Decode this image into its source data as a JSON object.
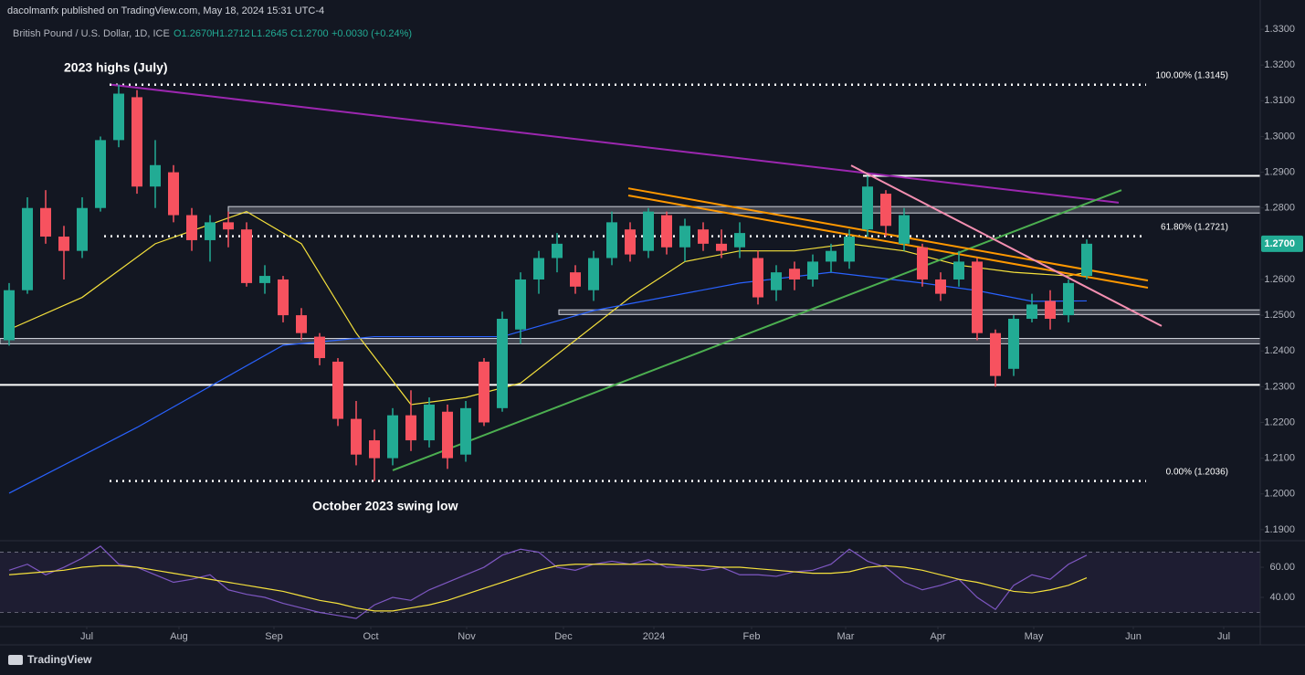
{
  "header": {
    "publisher": "dacolmanfx published on TradingView.com, May 18, 2024 15:31 UTC-4",
    "symbol": "British Pound / U.S. Dollar, 1D, ICE",
    "open": "O1.2670",
    "high": "H1.2712",
    "low": "L1.2645",
    "close": "C1.2700",
    "change": "+0.0030 (+0.24%)"
  },
  "footer": {
    "logo": "TradingView"
  },
  "chart_data": [
    {
      "type": "candlestick",
      "up_color": "#22ab94",
      "down_color": "#f7525f",
      "xlim": [
        -0.5,
        68.5
      ],
      "xticks": [
        {
          "value": 4.25,
          "label": "Jul"
        },
        {
          "value": 9.3,
          "label": "Aug"
        },
        {
          "value": 14.5,
          "label": "Sep"
        },
        {
          "value": 19.8,
          "label": "Oct"
        },
        {
          "value": 25.05,
          "label": "Nov"
        },
        {
          "value": 30.35,
          "label": "Dec"
        },
        {
          "value": 35.3,
          "label": "2024"
        },
        {
          "value": 40.65,
          "label": "Feb"
        },
        {
          "value": 45.8,
          "label": "Mar"
        },
        {
          "value": 50.85,
          "label": "Apr"
        },
        {
          "value": 56.1,
          "label": "May"
        },
        {
          "value": 61.55,
          "label": "Jun"
        },
        {
          "value": 66.5,
          "label": "Jul"
        }
      ],
      "ylim": [
        1.1869,
        1.3382
      ],
      "yticks": [
        {
          "value": 1.33,
          "label": "1.3300"
        },
        {
          "value": 1.32,
          "label": "1.3200"
        },
        {
          "value": 1.31,
          "label": "1.3100"
        },
        {
          "value": 1.3,
          "label": "1.3000"
        },
        {
          "value": 1.29,
          "label": "1.2900"
        },
        {
          "value": 1.28,
          "label": "1.2800"
        },
        {
          "value": 1.27,
          "label": "1.2700"
        },
        {
          "value": 1.26,
          "label": "1.2600"
        },
        {
          "value": 1.25,
          "label": "1.2500"
        },
        {
          "value": 1.24,
          "label": "1.2400"
        },
        {
          "value": 1.23,
          "label": "1.2300"
        },
        {
          "value": 1.22,
          "label": "1.2200"
        },
        {
          "value": 1.21,
          "label": "1.2100"
        },
        {
          "value": 1.2,
          "label": "1.2000"
        },
        {
          "value": 1.19,
          "label": "1.1900"
        }
      ],
      "ohlc": [
        [
          1.243,
          1.259,
          1.2415,
          1.257
        ],
        [
          1.257,
          1.283,
          1.256,
          1.28
        ],
        [
          1.28,
          1.285,
          1.27,
          1.272
        ],
        [
          1.272,
          1.275,
          1.26,
          1.268
        ],
        [
          1.268,
          1.283,
          1.266,
          1.28
        ],
        [
          1.28,
          1.3,
          1.279,
          1.299
        ],
        [
          1.299,
          1.3145,
          1.297,
          1.312
        ],
        [
          1.311,
          1.313,
          1.284,
          1.286
        ],
        [
          1.286,
          1.299,
          1.28,
          1.292
        ],
        [
          1.29,
          1.292,
          1.276,
          1.278
        ],
        [
          1.278,
          1.28,
          1.268,
          1.271
        ],
        [
          1.271,
          1.278,
          1.265,
          1.276
        ],
        [
          1.276,
          1.279,
          1.269,
          1.274
        ],
        [
          1.274,
          1.276,
          1.258,
          1.259
        ],
        [
          1.259,
          1.264,
          1.256,
          1.261
        ],
        [
          1.26,
          1.261,
          1.248,
          1.25
        ],
        [
          1.25,
          1.252,
          1.243,
          1.245
        ],
        [
          1.244,
          1.245,
          1.236,
          1.238
        ],
        [
          1.237,
          1.238,
          1.219,
          1.221
        ],
        [
          1.221,
          1.226,
          1.208,
          1.211
        ],
        [
          1.215,
          1.218,
          1.2036,
          1.21
        ],
        [
          1.21,
          1.224,
          1.208,
          1.222
        ],
        [
          1.222,
          1.229,
          1.212,
          1.215
        ],
        [
          1.215,
          1.227,
          1.213,
          1.225
        ],
        [
          1.223,
          1.225,
          1.207,
          1.21
        ],
        [
          1.211,
          1.226,
          1.209,
          1.224
        ],
        [
          1.237,
          1.238,
          1.219,
          1.22
        ],
        [
          1.224,
          1.251,
          1.223,
          1.249
        ],
        [
          1.246,
          1.262,
          1.242,
          1.26
        ],
        [
          1.26,
          1.268,
          1.256,
          1.266
        ],
        [
          1.266,
          1.273,
          1.262,
          1.27
        ],
        [
          1.262,
          1.264,
          1.256,
          1.258
        ],
        [
          1.257,
          1.268,
          1.254,
          1.266
        ],
        [
          1.266,
          1.279,
          1.264,
          1.276
        ],
        [
          1.274,
          1.276,
          1.265,
          1.267
        ],
        [
          1.268,
          1.28,
          1.266,
          1.279
        ],
        [
          1.278,
          1.279,
          1.267,
          1.269
        ],
        [
          1.269,
          1.277,
          1.265,
          1.275
        ],
        [
          1.274,
          1.276,
          1.268,
          1.27
        ],
        [
          1.27,
          1.274,
          1.266,
          1.268
        ],
        [
          1.269,
          1.276,
          1.266,
          1.273
        ],
        [
          1.266,
          1.268,
          1.253,
          1.255
        ],
        [
          1.257,
          1.264,
          1.254,
          1.262
        ],
        [
          1.263,
          1.265,
          1.257,
          1.26
        ],
        [
          1.26,
          1.267,
          1.258,
          1.265
        ],
        [
          1.265,
          1.27,
          1.262,
          1.268
        ],
        [
          1.265,
          1.274,
          1.263,
          1.272
        ],
        [
          1.274,
          1.289,
          1.272,
          1.286
        ],
        [
          1.284,
          1.285,
          1.272,
          1.275
        ],
        [
          1.27,
          1.28,
          1.268,
          1.278
        ],
        [
          1.269,
          1.27,
          1.258,
          1.26
        ],
        [
          1.26,
          1.262,
          1.254,
          1.256
        ],
        [
          1.26,
          1.268,
          1.258,
          1.265
        ],
        [
          1.265,
          1.266,
          1.243,
          1.245
        ],
        [
          1.245,
          1.246,
          1.23,
          1.233
        ],
        [
          1.235,
          1.25,
          1.233,
          1.249
        ],
        [
          1.249,
          1.256,
          1.248,
          1.253
        ],
        [
          1.254,
          1.257,
          1.246,
          1.249
        ],
        [
          1.25,
          1.26,
          1.248,
          1.259
        ],
        [
          1.261,
          1.2712,
          1.26,
          1.27
        ]
      ],
      "last_price": {
        "value": 1.27,
        "label": "1.2700",
        "color": "#22ab94"
      },
      "fib_levels": [
        {
          "value": 1.3145,
          "label": "100.00% (1.3145)",
          "from": 5.5,
          "to": 62.25
        },
        {
          "value": 1.2721,
          "label": "61.80% (1.2721)",
          "from": 5.2,
          "to": 62.25
        },
        {
          "value": 1.2036,
          "label": "0.00% (1.2036)",
          "from": 5.5,
          "to": 62.25
        }
      ],
      "zones": [
        {
          "top": 1.2804,
          "bottom": 1.2786,
          "from": 12,
          "to": 68.5
        },
        {
          "top": 1.2515,
          "bottom": 1.2502,
          "from": 30.1,
          "to": 68.5
        },
        {
          "top": 1.2435,
          "bottom": 1.242,
          "from": -0.5,
          "to": 68.5
        }
      ],
      "h_lines": [
        {
          "value": 1.2305,
          "from": -0.5,
          "to": 68.5
        },
        {
          "value": 1.289,
          "from": 46.75,
          "to": 68.5
        }
      ],
      "trendlines": [
        {
          "color": "#9c27b0",
          "points": [
            [
              5.6,
              1.3145
            ],
            [
              60.75,
              1.2815
            ]
          ]
        },
        {
          "color": "#4caf50",
          "points": [
            [
              21,
              1.2066
            ],
            [
              60.9,
              1.285
            ]
          ]
        },
        {
          "color": "#ff9800",
          "points": [
            [
              33.9,
              1.2835
            ],
            [
              62.35,
              1.2577
            ]
          ]
        },
        {
          "color": "#ff9800",
          "points": [
            [
              33.9,
              1.2855
            ],
            [
              62.35,
              1.2597
            ]
          ]
        },
        {
          "color": "#f48fb1",
          "points": [
            [
              46.1,
              1.2919
            ],
            [
              63.1,
              1.247
            ]
          ]
        }
      ],
      "moving_averages": [
        {
          "color": "#f5e13c",
          "points": [
            [
              0,
              1.246
            ],
            [
              4,
              1.255
            ],
            [
              8,
              1.27
            ],
            [
              13,
              1.279
            ],
            [
              16,
              1.27
            ],
            [
              19,
              1.245
            ],
            [
              22,
              1.225
            ],
            [
              25,
              1.227
            ],
            [
              28,
              1.231
            ],
            [
              31,
              1.243
            ],
            [
              34,
              1.255
            ],
            [
              37,
              1.265
            ],
            [
              40,
              1.268
            ],
            [
              43,
              1.268
            ],
            [
              46,
              1.27
            ],
            [
              49,
              1.268
            ],
            [
              52,
              1.264
            ],
            [
              55,
              1.262
            ],
            [
              58,
              1.261
            ],
            [
              59,
              1.262
            ]
          ]
        },
        {
          "color": "#2962ff",
          "points": [
            [
              0,
              1.2002
            ],
            [
              7,
              1.2186
            ],
            [
              15,
              1.2416
            ],
            [
              20,
              1.244
            ],
            [
              27,
              1.244
            ],
            [
              32,
              1.2513
            ],
            [
              40,
              1.259
            ],
            [
              45,
              1.262
            ],
            [
              50,
              1.259
            ],
            [
              53,
              1.2569
            ],
            [
              56,
              1.2539
            ],
            [
              59,
              1.254
            ]
          ]
        }
      ],
      "annotations": [
        "2023 highs (July)",
        "October 2023 swing low"
      ]
    },
    {
      "type": "line",
      "ylim": [
        20.6,
        77
      ],
      "yticks": [
        {
          "value": 60,
          "label": "60.00"
        },
        {
          "value": 40,
          "label": "40.00"
        }
      ],
      "bands": [
        70,
        30
      ],
      "series": [
        {
          "color": "#7e57c2",
          "values": [
            58,
            62,
            55,
            60,
            66,
            74,
            62,
            60,
            55,
            50,
            52,
            55,
            45,
            42,
            40,
            36,
            33,
            30,
            28,
            26,
            35,
            40,
            38,
            45,
            50,
            55,
            60,
            68,
            72,
            70,
            60,
            58,
            62,
            64,
            62,
            65,
            60,
            60,
            58,
            60,
            55,
            55,
            54,
            57,
            58,
            62,
            72,
            64,
            60,
            50,
            45,
            48,
            52,
            40,
            32,
            48,
            55,
            52,
            62,
            68
          ]
        },
        {
          "color": "#f5e13c",
          "values": [
            55,
            56,
            57,
            58,
            60,
            61,
            61,
            60,
            58,
            56,
            54,
            52,
            50,
            48,
            46,
            44,
            41,
            38,
            36,
            33,
            31,
            31,
            33,
            35,
            38,
            42,
            46,
            50,
            54,
            58,
            61,
            62,
            62,
            62,
            62,
            62,
            62,
            61,
            61,
            60,
            60,
            59,
            58,
            57,
            56,
            56,
            57,
            60,
            61,
            60,
            58,
            55,
            52,
            50,
            47,
            44,
            43,
            45,
            48,
            53
          ]
        }
      ]
    }
  ]
}
